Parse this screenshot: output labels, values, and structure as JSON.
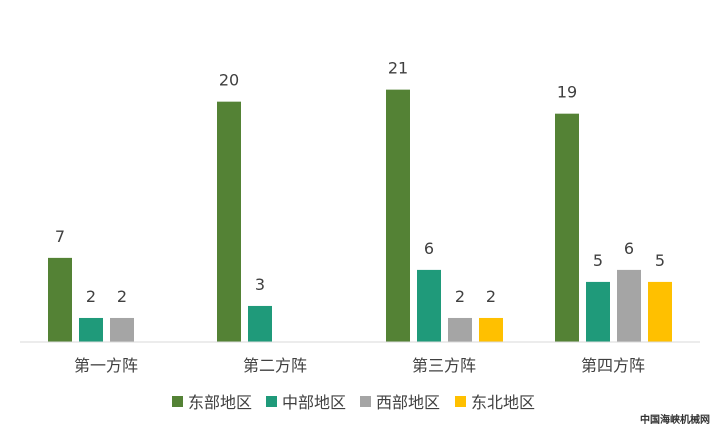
{
  "chart_data": {
    "type": "bar",
    "categories": [
      "第一方阵",
      "第二方阵",
      "第三方阵",
      "第四方阵"
    ],
    "series": [
      {
        "name": "东部地区",
        "color": "#548235",
        "values": [
          7,
          20,
          21,
          19
        ]
      },
      {
        "name": "中部地区",
        "color": "#1F9A7A",
        "values": [
          2,
          3,
          6,
          5
        ]
      },
      {
        "name": "西部地区",
        "color": "#A5A5A5",
        "values": [
          2,
          null,
          2,
          6
        ]
      },
      {
        "name": "东北地区",
        "color": "#FFC000",
        "values": [
          null,
          null,
          2,
          5
        ]
      }
    ],
    "title": "",
    "xlabel": "",
    "ylabel": "",
    "ylim": [
      0,
      24
    ],
    "grid": false,
    "legend": "bottom"
  },
  "watermark": "中国海峡机械网"
}
